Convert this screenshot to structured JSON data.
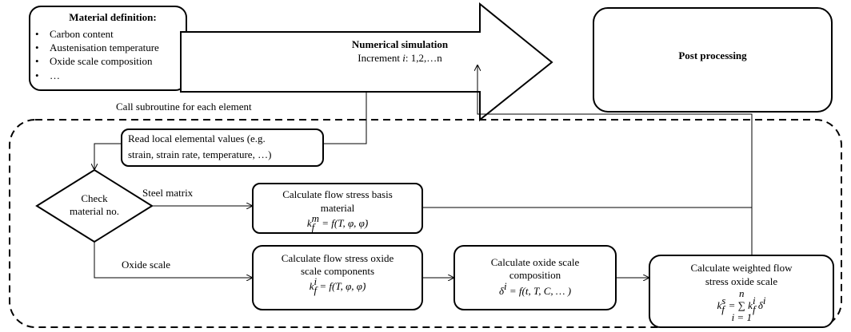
{
  "nodes": [
    {
      "title": "Material definition:",
      "items": [
        "Carbon content",
        "Austenisation temperature",
        "Oxide scale composition",
        "…"
      ]
    },
    {
      "title": "Numerical simulation",
      "subtitle": [
        "Increment ",
        "i",
        ": 1,2,…n"
      ]
    },
    {
      "label": "Post processing"
    },
    {
      "lines": [
        "Read local elemental values (e.g.",
        "strain, strain rate, temperature, …)"
      ]
    },
    {
      "lines": [
        "Check",
        "material no."
      ]
    },
    {
      "lines": [
        "Calculate flow stress basis",
        "material"
      ],
      "formula": [
        {
          "base": "k",
          "sub": "f",
          "sup": "m"
        },
        {
          "base": " = f(T, φ, φ̇)"
        }
      ]
    },
    {
      "lines": [
        "Calculate flow stress oxide",
        "scale components"
      ],
      "formula": [
        {
          "base": "k",
          "sub": "f",
          "sup": "i"
        },
        {
          "base": " = f(T, φ, φ̇)"
        }
      ]
    },
    {
      "lines": [
        "Calculate oxide scale",
        "composition"
      ],
      "formula": [
        {
          "base": "δ",
          "sup": "i"
        },
        {
          "base": " = f(t, T, C, … )"
        }
      ]
    },
    {
      "lines": [
        "Calculate weighted flow",
        "stress oxide scale"
      ],
      "formula": [
        {
          "base": "k",
          "sub": "f",
          "sup": "s"
        },
        {
          "base": " = "
        },
        {
          "base": "∑",
          "over": "n",
          "under": "i = 1"
        },
        {
          "base": " k",
          "sub": "f",
          "sup": "i"
        },
        {
          "base": " δ",
          "sup": "i"
        }
      ]
    }
  ],
  "edges": [
    "Call subroutine for each element",
    "Steel matrix",
    "Oxide scale"
  ]
}
